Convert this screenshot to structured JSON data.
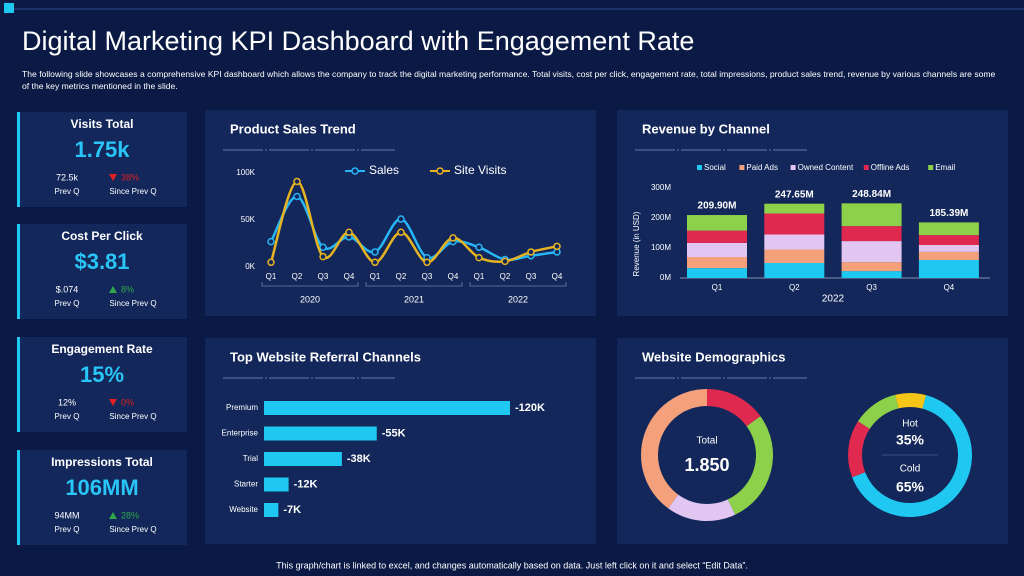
{
  "header": {
    "title": "Digital Marketing KPI Dashboard with Engagement Rate",
    "description": "The following slide showcases a comprehensive KPI dashboard which allows the company to track the digital marketing performance. Total visits, cost per click, engagement rate, total impressions, product sales trend, revenue by various channels are some of the key metrics mentioned in the slide."
  },
  "kpis": [
    {
      "title": "Visits Total",
      "value": "1.75k",
      "prev_value": "72.5k",
      "prev_label": "Prev Q",
      "change": "38%",
      "change_label": "Since Prev Q",
      "direction": "down"
    },
    {
      "title": "Cost Per Click",
      "value": "$3.81",
      "prev_value": "$.074",
      "prev_label": "Prev Q",
      "change": "8%",
      "change_label": "Since Prev Q",
      "direction": "up"
    },
    {
      "title": "Engagement Rate",
      "value": "15%",
      "prev_value": "12%",
      "prev_label": "Prev Q",
      "change": "0%",
      "change_label": "Since Prev Q",
      "direction": "down"
    },
    {
      "title": "Impressions Total",
      "value": "106MM",
      "prev_value": "94MM",
      "prev_label": "Prev Q",
      "change": "28%",
      "change_label": "Since Prev Q",
      "direction": "up"
    }
  ],
  "chart_data": [
    {
      "type": "line",
      "title": "Product Sales Trend",
      "categories": [
        "Q1",
        "Q2",
        "Q3",
        "Q4",
        "Q1",
        "Q2",
        "Q3",
        "Q4",
        "Q1",
        "Q2",
        "Q3",
        "Q4"
      ],
      "groups": [
        "2020",
        "2021",
        "2022"
      ],
      "series": [
        {
          "name": "Sales",
          "color": "#29b6f6",
          "values": [
            27,
            75,
            21,
            32,
            16,
            51,
            10,
            27,
            21,
            8,
            12,
            16
          ]
        },
        {
          "name": "Site Visits",
          "color": "#e6b422",
          "values": [
            5,
            91,
            11,
            37,
            5,
            37,
            5,
            31,
            10,
            6,
            16,
            22
          ]
        }
      ],
      "ylim": [
        0,
        100
      ],
      "yticks": [
        {
          "value": 0,
          "label": "0K"
        },
        {
          "value": 50,
          "label": "50K"
        },
        {
          "value": 100,
          "label": "100K"
        }
      ],
      "legend": "top"
    },
    {
      "type": "stacked-bar",
      "title": "Revenue by Channel",
      "categories": [
        "Q1",
        "Q2",
        "Q3",
        "Q4"
      ],
      "xlabel": "2022",
      "ylabel": "Revenue (in USD)",
      "series": [
        {
          "name": "Social",
          "color": "#1ec8f0",
          "values": [
            33,
            50,
            23,
            60
          ]
        },
        {
          "name": "Paid Ads",
          "color": "#f4a07a",
          "values": [
            37,
            45,
            30,
            27
          ]
        },
        {
          "name": "Owned Content",
          "color": "#e2c6f2",
          "values": [
            47,
            50,
            70,
            23
          ]
        },
        {
          "name": "Offline Ads",
          "color": "#e0294e",
          "values": [
            41,
            70,
            50,
            33
          ]
        },
        {
          "name": "Email",
          "color": "#8dd04a",
          "values": [
            51.9,
            32.65,
            75.84,
            42.39
          ]
        }
      ],
      "totals": {
        "values": [
          209.9,
          247.65,
          248.84,
          185.39
        ],
        "value_labels": [
          "209.90M",
          "247.65M",
          "248.84M",
          "185.39M"
        ]
      },
      "ylim": [
        0,
        300
      ],
      "yticks": [
        {
          "value": 0,
          "label": "0M"
        },
        {
          "value": 100,
          "label": "100M"
        },
        {
          "value": 200,
          "label": "200M"
        },
        {
          "value": 300,
          "label": "300M"
        }
      ],
      "legend": "top"
    },
    {
      "type": "hbar",
      "title": "Top Website Referral Channels",
      "categories": [
        "Premium",
        "Enterprise",
        "Trial",
        "Starter",
        "Website"
      ],
      "values": [
        -120,
        -55,
        -38,
        -12,
        -7
      ],
      "value_labels": [
        "-120K",
        "-55K",
        "-38K",
        "-12K",
        "-7K"
      ],
      "color": "#1ec8f0",
      "xlim": [
        0,
        -120
      ]
    },
    {
      "type": "donut",
      "title": "Website Demographics",
      "center_label": "Total",
      "center_value": "1.850",
      "values": [
        15,
        28,
        17,
        40
      ],
      "colors": [
        "#e0294e",
        "#8dd04a",
        "#e2c6f2",
        "#f4a07a"
      ]
    },
    {
      "type": "donut",
      "categories": [
        "Hot",
        "Cold"
      ],
      "values": [
        35,
        65
      ],
      "value_labels": [
        "35%",
        "65%"
      ],
      "segments": {
        "values": [
          65,
          15,
          12,
          8
        ],
        "colors": [
          "#1ec8f0",
          "#e0294e",
          "#8dd04a",
          "#f5c518"
        ]
      }
    }
  ],
  "footer": "This graph/chart is linked to excel, and changes automatically based on data. Just left click on it and select “Edit Data”."
}
